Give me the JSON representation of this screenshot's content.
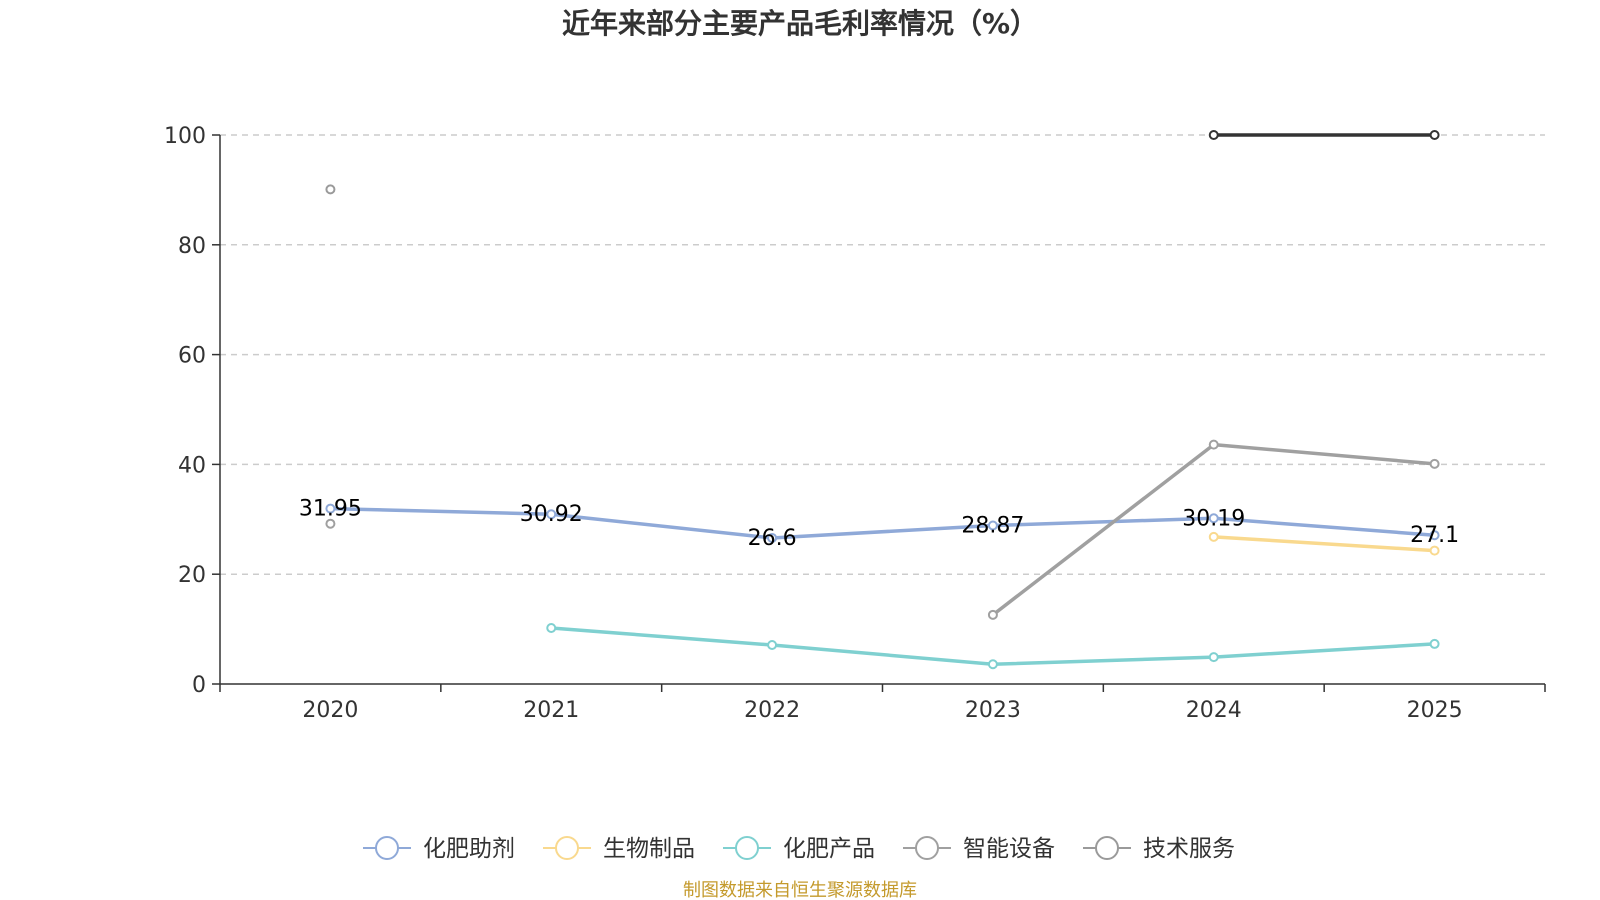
{
  "chart_data": {
    "type": "line",
    "title": "近年来部分主要产品毛利率情况（%）",
    "categories": [
      "2020",
      "2021",
      "2022",
      "2023",
      "2024",
      "2025"
    ],
    "y_ticks": [
      "0",
      "20",
      "40",
      "60",
      "80",
      "100"
    ],
    "ylim": [
      0,
      100
    ],
    "grid": true,
    "legend_position": "bottom",
    "series": [
      {
        "name": "化肥助剂",
        "color": "#8fa9d8",
        "values": [
          31.95,
          30.92,
          26.6,
          28.87,
          30.19,
          27.1
        ],
        "labels": [
          "31.95",
          "30.92",
          "26.6",
          "28.87",
          "30.19",
          "27.1"
        ]
      },
      {
        "name": "生物制品",
        "color": "#f9d98e",
        "values": [
          null,
          null,
          null,
          null,
          26.8,
          24.3
        ],
        "labels": []
      },
      {
        "name": "化肥产品",
        "color": "#7fd0d0",
        "values": [
          null,
          10.2,
          7.1,
          3.6,
          4.9,
          7.3
        ],
        "labels": []
      },
      {
        "name": "智能设备",
        "color": "#a0a0a0",
        "values": [
          29.2,
          null,
          null,
          12.6,
          43.6,
          40.1
        ],
        "labels": []
      },
      {
        "name": "技术服务",
        "color": "#9a9a9a",
        "values": [
          90.1,
          null,
          null,
          null,
          null,
          null
        ],
        "labels": []
      },
      {
        "name": "",
        "color": "#333333",
        "values": [
          null,
          null,
          null,
          null,
          100,
          100
        ],
        "labels": []
      }
    ]
  },
  "legend": [
    {
      "name": "化肥助剂",
      "color": "#8fa9d8"
    },
    {
      "name": "生物制品",
      "color": "#f9d98e"
    },
    {
      "name": "化肥产品",
      "color": "#7fd0d0"
    },
    {
      "name": "智能设备",
      "color": "#a0a0a0"
    },
    {
      "name": "技术服务",
      "color": "#9a9a9a"
    }
  ],
  "source": "制图数据来自恒生聚源数据库"
}
